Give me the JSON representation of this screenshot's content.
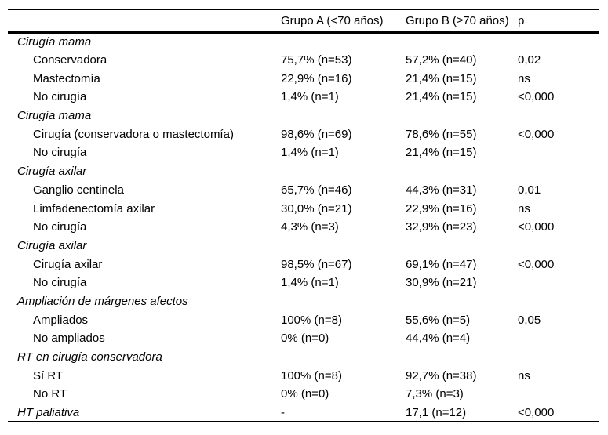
{
  "header": {
    "col_label": "",
    "col_a": "Grupo A (<70 años)",
    "col_b": "Grupo B (≥70 años)",
    "col_p": "p"
  },
  "rows": [
    {
      "type": "section",
      "label": "Cirugía mama",
      "a": "",
      "b": "",
      "p": ""
    },
    {
      "type": "item",
      "label": "Conservadora",
      "a": "75,7% (n=53)",
      "b": "57,2% (n=40)",
      "p": "0,02"
    },
    {
      "type": "item",
      "label": "Mastectomía",
      "a": "22,9% (n=16)",
      "b": "21,4% (n=15)",
      "p": "ns"
    },
    {
      "type": "item",
      "label": "No cirugía",
      "a": "1,4% (n=1)",
      "b": "21,4% (n=15)",
      "p": "<0,000"
    },
    {
      "type": "section",
      "label": "Cirugía mama",
      "a": "",
      "b": "",
      "p": ""
    },
    {
      "type": "item",
      "label": "Cirugía (conservadora o mastectomía)",
      "a": "98,6% (n=69)",
      "b": "78,6% (n=55)",
      "p": "<0,000"
    },
    {
      "type": "item",
      "label": "No cirugía",
      "a": "1,4% (n=1)",
      "b": "21,4% (n=15)",
      "p": ""
    },
    {
      "type": "section",
      "label": "Cirugía axilar",
      "a": "",
      "b": "",
      "p": ""
    },
    {
      "type": "item",
      "label": "Ganglio centinela",
      "a": "65,7% (n=46)",
      "b": "44,3% (n=31)",
      "p": "0,01"
    },
    {
      "type": "item",
      "label": "Limfadenectomía axilar",
      "a": "30,0% (n=21)",
      "b": "22,9% (n=16)",
      "p": "ns"
    },
    {
      "type": "item",
      "label": "No cirugía",
      "a": "4,3% (n=3)",
      "b": "32,9% (n=23)",
      "p": "<0,000"
    },
    {
      "type": "section",
      "label": "Cirugía axilar",
      "a": "",
      "b": "",
      "p": ""
    },
    {
      "type": "item",
      "label": "Cirugía axilar",
      "a": "98,5% (n=67)",
      "b": "69,1% (n=47)",
      "p": "<0,000"
    },
    {
      "type": "item",
      "label": "No cirugía",
      "a": "1,4% (n=1)",
      "b": "30,9% (n=21)",
      "p": ""
    },
    {
      "type": "section",
      "label": "Ampliación de márgenes afectos",
      "a": "",
      "b": "",
      "p": ""
    },
    {
      "type": "item",
      "label": "Ampliados",
      "a": "100% (n=8)",
      "b": "55,6% (n=5)",
      "p": "0,05"
    },
    {
      "type": "item",
      "label": "No ampliados",
      "a": "0% (n=0)",
      "b": "44,4% (n=4)",
      "p": ""
    },
    {
      "type": "section",
      "label": "RT en cirugía conservadora",
      "a": "",
      "b": "",
      "p": ""
    },
    {
      "type": "item",
      "label": "Sí RT",
      "a": "100% (n=8)",
      "b": "92,7% (n=38)",
      "p": "ns"
    },
    {
      "type": "item",
      "label": "No RT",
      "a": "0% (n=0)",
      "b": "7,3% (n=3)",
      "p": ""
    },
    {
      "type": "section",
      "label": "HT paliativa",
      "a": "-",
      "b": "17,1 (n=12)",
      "p": "<0,000"
    }
  ]
}
